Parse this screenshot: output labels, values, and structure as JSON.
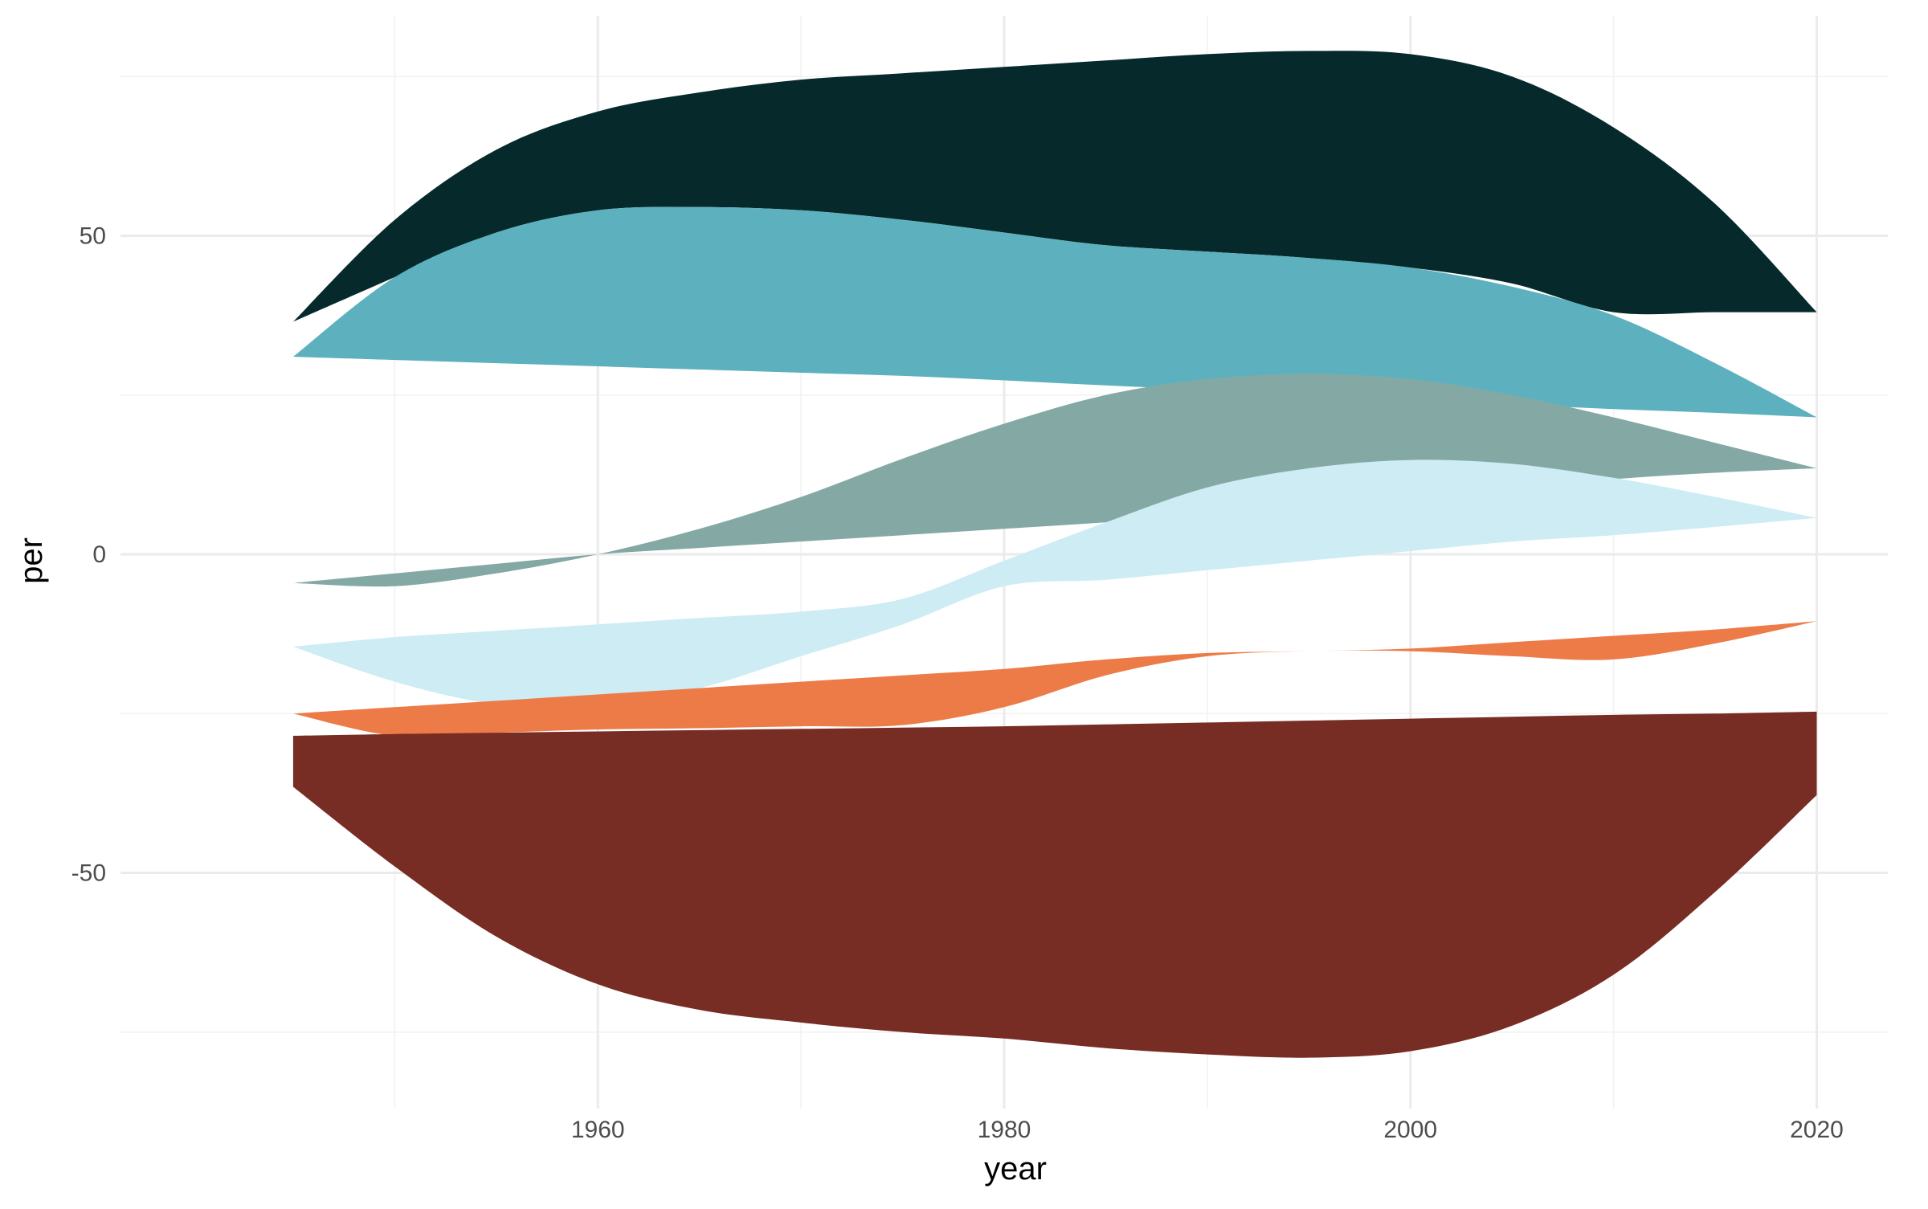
{
  "chart_data": {
    "type": "area",
    "subtype": "streamgraph",
    "title": "",
    "xlabel": "year",
    "ylabel": "per",
    "xlim": [
      1936.5,
      2023.5
    ],
    "ylim": [
      -87,
      87
    ],
    "x_ticks": [
      1960,
      1980,
      2000,
      2020
    ],
    "y_ticks": [
      -50,
      0,
      50
    ],
    "x_minor": [
      1950,
      1970,
      1990,
      2010
    ],
    "y_minor": [
      -75,
      -25,
      25,
      75
    ],
    "grid": true,
    "legend": "none",
    "x_start": 1945,
    "x_end": 2020,
    "layers": [
      {
        "color": "#062a2c",
        "top": [
          [
            1945,
            36.5
          ],
          [
            1950,
            52.5
          ],
          [
            1955,
            63.5
          ],
          [
            1960,
            69.5
          ],
          [
            1965,
            72.5
          ],
          [
            1970,
            74.5
          ],
          [
            1975,
            75.5
          ],
          [
            1980,
            76.5
          ],
          [
            1985,
            77.5
          ],
          [
            1990,
            78.5
          ],
          [
            1995,
            79
          ],
          [
            2000,
            78.5
          ],
          [
            2005,
            75
          ],
          [
            2010,
            67
          ],
          [
            2015,
            55
          ],
          [
            2020,
            38
          ]
        ],
        "bottom": [
          [
            1945,
            36.5
          ],
          [
            1950,
            43.5
          ],
          [
            1955,
            50.5
          ],
          [
            1960,
            54
          ],
          [
            1965,
            54.5
          ],
          [
            1970,
            54
          ],
          [
            1975,
            52.5
          ],
          [
            1980,
            50.5
          ],
          [
            1985,
            48.5
          ],
          [
            1990,
            47.5
          ],
          [
            1995,
            46.5
          ],
          [
            2000,
            45
          ],
          [
            2005,
            42.5
          ],
          [
            2010,
            38
          ],
          [
            2015,
            38
          ],
          [
            2020,
            38
          ]
        ]
      },
      {
        "color": "#5db1be",
        "top": [
          [
            1945,
            31
          ],
          [
            1950,
            43.5
          ],
          [
            1955,
            50.5
          ],
          [
            1960,
            54
          ],
          [
            1965,
            54.5
          ],
          [
            1970,
            54
          ],
          [
            1975,
            52.5
          ],
          [
            1980,
            50.5
          ],
          [
            1985,
            48.5
          ],
          [
            1990,
            47.5
          ],
          [
            1995,
            46.5
          ],
          [
            2000,
            45
          ],
          [
            2005,
            42
          ],
          [
            2010,
            37.5
          ],
          [
            2015,
            30
          ],
          [
            2020,
            21.5
          ]
        ],
        "bottom": [
          [
            1945,
            31
          ],
          [
            1950,
            30.5
          ],
          [
            1955,
            30
          ],
          [
            1960,
            29.5
          ],
          [
            1965,
            29
          ],
          [
            1970,
            28.5
          ],
          [
            1975,
            28
          ],
          [
            1980,
            27.3
          ],
          [
            1985,
            26.5
          ],
          [
            1990,
            25.8
          ],
          [
            1995,
            25
          ],
          [
            2000,
            24.2
          ],
          [
            2005,
            23.5
          ],
          [
            2010,
            22.8
          ],
          [
            2015,
            22.2
          ],
          [
            2020,
            21.5
          ]
        ]
      },
      {
        "color": "#84a9a5",
        "top": [
          [
            1945,
            -4.5
          ],
          [
            1950,
            -5
          ],
          [
            1955,
            -3
          ],
          [
            1960,
            0
          ],
          [
            1965,
            4
          ],
          [
            1970,
            9
          ],
          [
            1975,
            15
          ],
          [
            1980,
            20.5
          ],
          [
            1985,
            25
          ],
          [
            1990,
            27.5
          ],
          [
            1995,
            28.3
          ],
          [
            2000,
            27.5
          ],
          [
            2005,
            25
          ],
          [
            2010,
            21.5
          ],
          [
            2015,
            17.5
          ],
          [
            2020,
            13.5
          ]
        ],
        "bottom": [
          [
            1945,
            -4.5
          ],
          [
            1950,
            -3
          ],
          [
            1955,
            -1.5
          ],
          [
            1960,
            0
          ],
          [
            1965,
            1
          ],
          [
            1970,
            2
          ],
          [
            1975,
            3
          ],
          [
            1980,
            4
          ],
          [
            1985,
            5
          ],
          [
            1990,
            6.2
          ],
          [
            1995,
            7.5
          ],
          [
            2000,
            9
          ],
          [
            2005,
            10.5
          ],
          [
            2010,
            11.8
          ],
          [
            2015,
            12.8
          ],
          [
            2020,
            13.5
          ]
        ]
      },
      {
        "color": "#cdecf4",
        "top": [
          [
            1945,
            -14.5
          ],
          [
            1950,
            -13
          ],
          [
            1955,
            -12
          ],
          [
            1960,
            -11
          ],
          [
            1965,
            -10
          ],
          [
            1970,
            -9
          ],
          [
            1975,
            -7
          ],
          [
            1980,
            -1
          ],
          [
            1985,
            5
          ],
          [
            1990,
            10.5
          ],
          [
            1995,
            13.5
          ],
          [
            2000,
            14.8
          ],
          [
            2005,
            14.2
          ],
          [
            2010,
            12
          ],
          [
            2015,
            9
          ],
          [
            2020,
            5.7
          ]
        ],
        "bottom": [
          [
            1945,
            -14.5
          ],
          [
            1950,
            -20
          ],
          [
            1955,
            -23.5
          ],
          [
            1960,
            -23.5
          ],
          [
            1965,
            -21
          ],
          [
            1970,
            -16
          ],
          [
            1975,
            -11
          ],
          [
            1980,
            -5
          ],
          [
            1985,
            -4
          ],
          [
            1990,
            -2.5
          ],
          [
            1995,
            -1
          ],
          [
            2000,
            0.5
          ],
          [
            2005,
            2
          ],
          [
            2010,
            3
          ],
          [
            2015,
            4.3
          ],
          [
            2020,
            5.7
          ]
        ]
      },
      {
        "color": "#ed7b47",
        "top": [
          [
            1945,
            -25
          ],
          [
            1950,
            -24
          ],
          [
            1955,
            -23
          ],
          [
            1960,
            -22
          ],
          [
            1965,
            -21
          ],
          [
            1970,
            -20
          ],
          [
            1975,
            -19
          ],
          [
            1980,
            -18
          ],
          [
            1985,
            -16.5
          ],
          [
            1990,
            -15.5
          ],
          [
            1995,
            -15.2
          ],
          [
            2000,
            -14.8
          ],
          [
            2005,
            -13.8
          ],
          [
            2010,
            -12.8
          ],
          [
            2015,
            -11.8
          ],
          [
            2020,
            -10.5
          ]
        ],
        "bottom": [
          [
            1945,
            -25
          ],
          [
            1950,
            -28.5
          ],
          [
            1955,
            -28
          ],
          [
            1960,
            -27.5
          ],
          [
            1965,
            -27.3
          ],
          [
            1970,
            -27
          ],
          [
            1975,
            -26.8
          ],
          [
            1980,
            -24
          ],
          [
            1985,
            -19
          ],
          [
            1990,
            -16
          ],
          [
            1995,
            -15.2
          ],
          [
            2000,
            -15.2
          ],
          [
            2005,
            -16
          ],
          [
            2010,
            -16.5
          ],
          [
            2015,
            -14
          ],
          [
            2020,
            -10.5
          ]
        ]
      },
      {
        "color": "#772c24",
        "top": [
          [
            1945,
            -28.5
          ],
          [
            1950,
            -28.2
          ],
          [
            1955,
            -28
          ],
          [
            1960,
            -27.8
          ],
          [
            1965,
            -27.6
          ],
          [
            1970,
            -27.4
          ],
          [
            1975,
            -27.2
          ],
          [
            1980,
            -27
          ],
          [
            1985,
            -26.7
          ],
          [
            1990,
            -26.4
          ],
          [
            1995,
            -26.1
          ],
          [
            2000,
            -25.8
          ],
          [
            2005,
            -25.5
          ],
          [
            2010,
            -25.2
          ],
          [
            2015,
            -25
          ],
          [
            2020,
            -24.7
          ]
        ],
        "bottom": [
          [
            1945,
            -36.5
          ],
          [
            1950,
            -49
          ],
          [
            1955,
            -60
          ],
          [
            1960,
            -67.5
          ],
          [
            1965,
            -71.5
          ],
          [
            1970,
            -73.5
          ],
          [
            1975,
            -75
          ],
          [
            1980,
            -76
          ],
          [
            1985,
            -77.5
          ],
          [
            1990,
            -78.5
          ],
          [
            1995,
            -79
          ],
          [
            2000,
            -78
          ],
          [
            2005,
            -74
          ],
          [
            2010,
            -66
          ],
          [
            2015,
            -53
          ],
          [
            2020,
            -37.8
          ]
        ]
      }
    ]
  }
}
